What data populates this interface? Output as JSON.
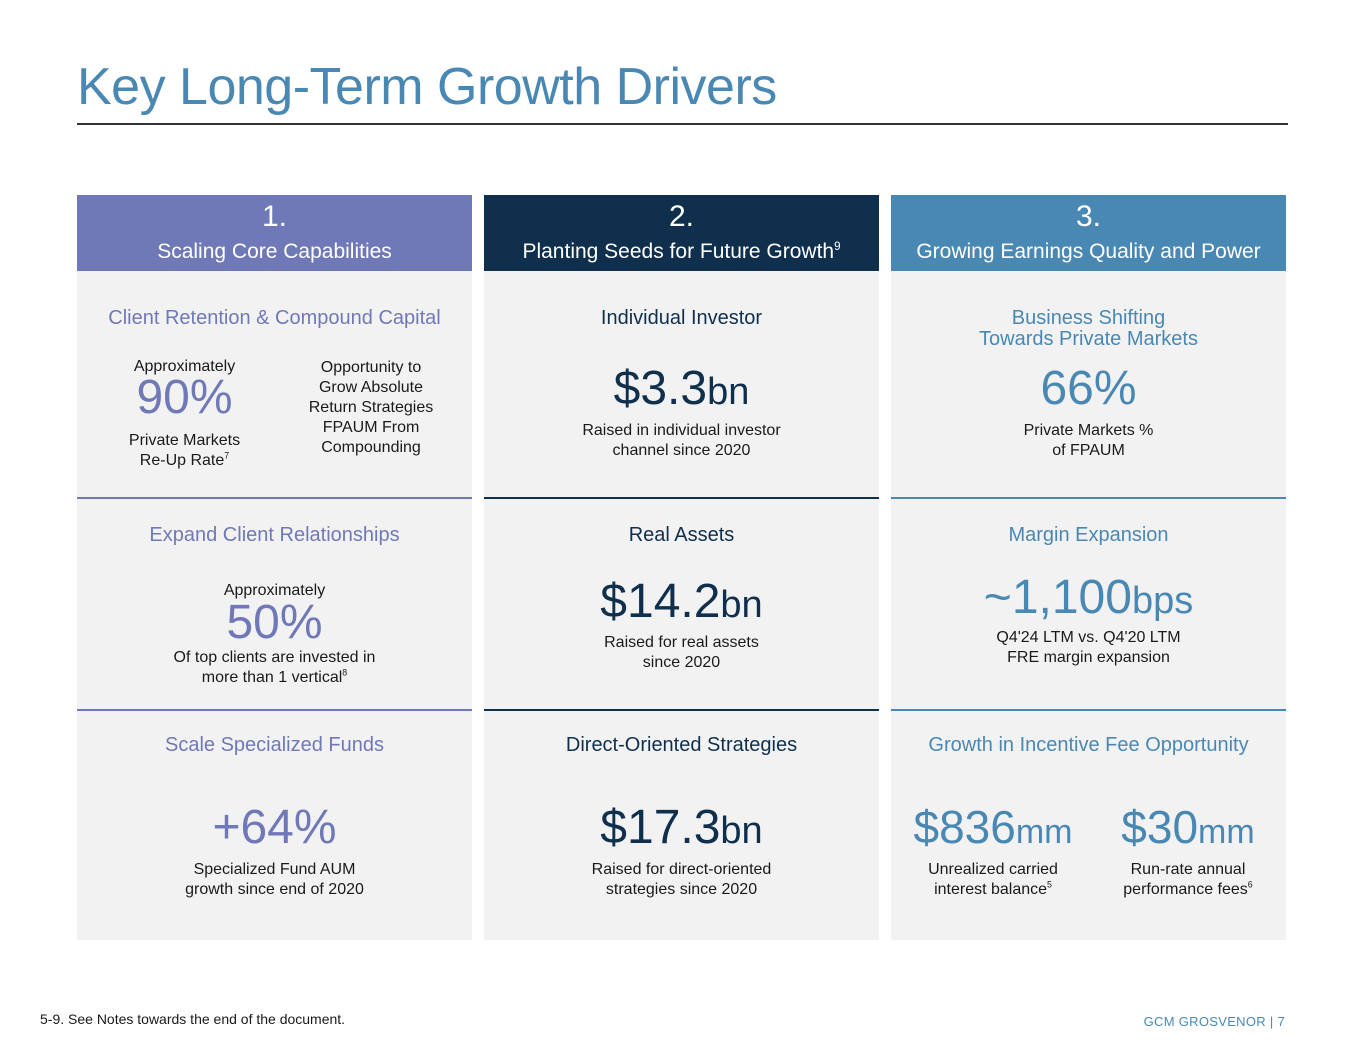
{
  "title": "Key Long-Term Growth Drivers",
  "columns": [
    {
      "number": "1.",
      "name": "Scaling Core Capabilities",
      "sections": [
        {
          "title": "Client Retention & Compound Capital",
          "left": {
            "prefix": "Approximately",
            "value": "90%",
            "caption_line1": "Private Markets",
            "caption_line2": "Re-Up Rate",
            "footnote": "7"
          },
          "right": {
            "lines": [
              "Opportunity to",
              "Grow Absolute",
              "Return Strategies",
              "FPAUM From",
              "Compounding"
            ]
          }
        },
        {
          "title": "Expand Client Relationships",
          "prefix": "Approximately",
          "value": "50%",
          "caption_line1": "Of top clients are invested in",
          "caption_line2": "more than 1 vertical",
          "footnote": "8"
        },
        {
          "title": "Scale Specialized Funds",
          "value": "+64%",
          "caption_line1": "Specialized Fund AUM",
          "caption_line2": "growth since end of 2020"
        }
      ]
    },
    {
      "number": "2.",
      "name": "Planting Seeds for Future Growth",
      "name_footnote": "9",
      "sections": [
        {
          "title": "Individual Investor",
          "value": "$3.3",
          "unit": "bn",
          "caption_line1": "Raised in individual investor",
          "caption_line2": "channel since 2020"
        },
        {
          "title": "Real Assets",
          "value": "$14.2",
          "unit": "bn",
          "caption_line1": "Raised for real assets",
          "caption_line2": "since 2020"
        },
        {
          "title": "Direct-Oriented Strategies",
          "value": "$17.3",
          "unit": "bn",
          "caption_line1": "Raised for direct-oriented",
          "caption_line2": "strategies since 2020"
        }
      ]
    },
    {
      "number": "3.",
      "name": "Growing Earnings Quality and Power",
      "sections": [
        {
          "title_line1": "Business Shifting",
          "title_line2": "Towards Private Markets",
          "value": "66%",
          "caption_line1": "Private Markets %",
          "caption_line2": "of FPAUM"
        },
        {
          "title": "Margin Expansion",
          "value": "~1,100",
          "unit": "bps",
          "caption_line1": "Q4'24 LTM vs. Q4'20 LTM",
          "caption_line2": "FRE margin expansion"
        },
        {
          "title": "Growth in Incentive Fee Opportunity",
          "left": {
            "value": "$836",
            "unit": "mm",
            "caption_line1": "Unrealized carried",
            "caption_line2": "interest balance",
            "footnote": "5"
          },
          "right": {
            "value": "$30",
            "unit": "mm",
            "caption_line1": "Run-rate annual",
            "caption_line2": "performance fees",
            "footnote": "6"
          }
        }
      ]
    }
  ],
  "footnote_text": "5-9. See Notes towards the end of the document.",
  "footer": "GCM GROSVENOR | 7",
  "colors": {
    "title": "#4a88b4",
    "col1": "#7079b8",
    "col2": "#0f2f4d",
    "col3": "#4a88b4",
    "panel": "#f2f2f2"
  }
}
